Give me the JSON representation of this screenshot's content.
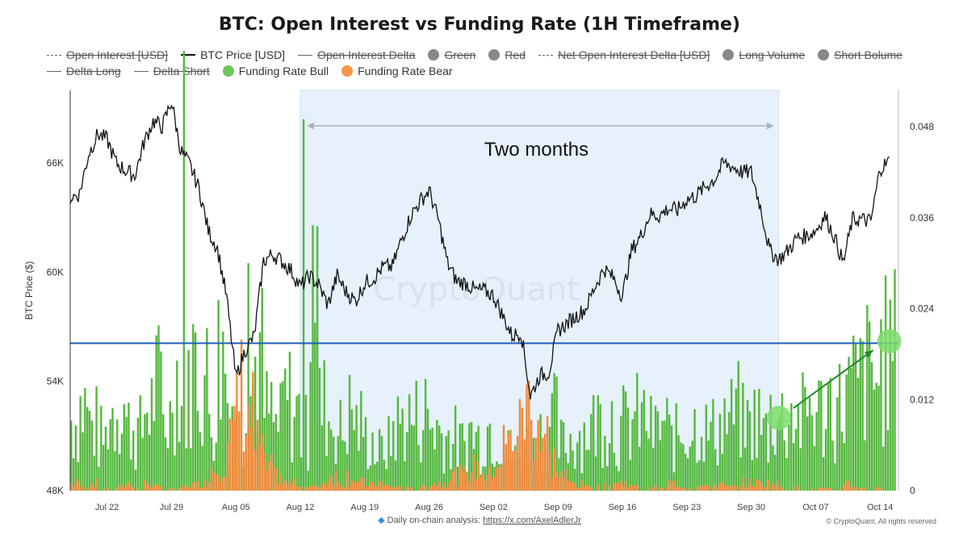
{
  "title": "BTC: Open Interest vs Funding Rate (1H Timeframe)",
  "legend": {
    "row1": [
      {
        "label": "Open Interest [USD]",
        "kind": "dashed",
        "off": true
      },
      {
        "label": "BTC Price [USD]",
        "kind": "black",
        "off": false
      },
      {
        "label": "Open Interest Delta",
        "kind": "line",
        "off": true
      },
      {
        "label": "Green",
        "kind": "dot",
        "color": "#888888",
        "off": true
      },
      {
        "label": "Red",
        "kind": "dot",
        "color": "#888888",
        "off": true
      },
      {
        "label": "Net Open Interest Delta [USD]",
        "kind": "dashed",
        "off": true
      },
      {
        "label": "Long Volume",
        "kind": "dot",
        "color": "#888888",
        "off": true
      },
      {
        "label": "Short Bolume",
        "kind": "dot",
        "color": "#888888",
        "off": true
      }
    ],
    "row2": [
      {
        "label": "Delta Long",
        "kind": "line",
        "off": true
      },
      {
        "label": "Delta Short",
        "kind": "line",
        "off": true
      },
      {
        "label": "Funding Rate Bull",
        "kind": "dot",
        "color": "#6cc65b",
        "off": false
      },
      {
        "label": "Funding Rate Bear",
        "kind": "dot",
        "color": "#f3964b",
        "off": false
      }
    ]
  },
  "annotation": "Two months",
  "watermark": "CryptoQuant",
  "footer": {
    "prefix": "Daily on-chain analysis: ",
    "link": "https://x.com/AxelAdlerJr",
    "copyright": "© CryptoQuant. All rights reserved"
  },
  "colors": {
    "price": "#111111",
    "bull": "#55b83f",
    "bear": "#f08a3c",
    "highlight_band": "#e6f1fc",
    "level_line": "#1f5fbf",
    "arrow": "#1e8a2a",
    "marker": "#7ddc6c"
  },
  "chart_data": {
    "type": "line",
    "ylabel": "BTC Price ($)",
    "ylim": [
      48000,
      70000
    ],
    "y2lim": [
      0,
      0.0528
    ],
    "y_ticks": [
      {
        "label": "48K",
        "value": 48000
      },
      {
        "label": "54K",
        "value": 54000
      },
      {
        "label": "60K",
        "value": 60000
      },
      {
        "label": "66K",
        "value": 66000
      }
    ],
    "y2_ticks": [
      {
        "label": "0",
        "value": 0
      },
      {
        "label": "0.012",
        "value": 0.012
      },
      {
        "label": "0.024",
        "value": 0.024
      },
      {
        "label": "0.036",
        "value": 0.036
      },
      {
        "label": "0.048",
        "value": 0.048
      }
    ],
    "x_ticks": [
      "Jul 22",
      "Jul 29",
      "Aug 05",
      "Aug 12",
      "Aug 19",
      "Aug 26",
      "Sep 02",
      "Sep 09",
      "Sep 16",
      "Sep 23",
      "Sep 30",
      "Oct 07",
      "Oct 14"
    ],
    "highlight_range": [
      "2024-08-12",
      "2024-10-03"
    ],
    "horizontal_line_value": 56100,
    "markers": [
      {
        "date": "2024-10-03",
        "funding_rate": 0.0096
      },
      {
        "date": "2024-10-15",
        "funding_rate": 0.0197
      }
    ],
    "series": [
      {
        "name": "BTC Price [USD]",
        "x": [
          "2024-07-18",
          "2024-07-19",
          "2024-07-20",
          "2024-07-21",
          "2024-07-22",
          "2024-07-23",
          "2024-07-24",
          "2024-07-25",
          "2024-07-26",
          "2024-07-27",
          "2024-07-28",
          "2024-07-29",
          "2024-07-30",
          "2024-07-31",
          "2024-08-01",
          "2024-08-02",
          "2024-08-03",
          "2024-08-04",
          "2024-08-05",
          "2024-08-06",
          "2024-08-07",
          "2024-08-08",
          "2024-08-09",
          "2024-08-10",
          "2024-08-11",
          "2024-08-12",
          "2024-08-13",
          "2024-08-14",
          "2024-08-15",
          "2024-08-16",
          "2024-08-17",
          "2024-08-18",
          "2024-08-19",
          "2024-08-20",
          "2024-08-21",
          "2024-08-22",
          "2024-08-23",
          "2024-08-24",
          "2024-08-25",
          "2024-08-26",
          "2024-08-27",
          "2024-08-28",
          "2024-08-29",
          "2024-08-30",
          "2024-08-31",
          "2024-09-01",
          "2024-09-02",
          "2024-09-03",
          "2024-09-04",
          "2024-09-05",
          "2024-09-06",
          "2024-09-07",
          "2024-09-08",
          "2024-09-09",
          "2024-09-10",
          "2024-09-11",
          "2024-09-12",
          "2024-09-13",
          "2024-09-14",
          "2024-09-15",
          "2024-09-16",
          "2024-09-17",
          "2024-09-18",
          "2024-09-19",
          "2024-09-20",
          "2024-09-21",
          "2024-09-22",
          "2024-09-23",
          "2024-09-24",
          "2024-09-25",
          "2024-09-26",
          "2024-09-27",
          "2024-09-28",
          "2024-09-29",
          "2024-09-30",
          "2024-10-01",
          "2024-10-02",
          "2024-10-03",
          "2024-10-04",
          "2024-10-05",
          "2024-10-06",
          "2024-10-07",
          "2024-10-08",
          "2024-10-09",
          "2024-10-10",
          "2024-10-11",
          "2024-10-12",
          "2024-10-13",
          "2024-10-14",
          "2024-10-15"
        ],
        "values": [
          64100,
          64300,
          66500,
          67600,
          67300,
          66000,
          65600,
          65300,
          67100,
          68300,
          68000,
          69400,
          66700,
          65900,
          64600,
          62300,
          61300,
          58600,
          54200,
          55700,
          56500,
          60600,
          61000,
          60600,
          60100,
          59200,
          59800,
          59300,
          58200,
          59800,
          58900,
          58400,
          59400,
          59700,
          60300,
          60300,
          61800,
          63100,
          63900,
          64500,
          62900,
          60500,
          59500,
          59400,
          59000,
          59000,
          58700,
          57600,
          56500,
          56700,
          53200,
          54300,
          54500,
          56800,
          57200,
          57600,
          58000,
          59200,
          60200,
          59700,
          58700,
          61200,
          62000,
          63200,
          63100,
          63500,
          63400,
          64000,
          64200,
          64700,
          65100,
          66000,
          65800,
          65500,
          65500,
          63600,
          61200,
          60700,
          61200,
          61900,
          62000,
          62300,
          63100,
          62000,
          60500,
          62900,
          62900,
          62800,
          65700,
          66100
        ]
      },
      {
        "name": "Funding Rate Bull",
        "x_range": [
          "2024-07-18",
          "2024-10-15"
        ],
        "values": [
          0.011,
          0.013,
          0.01,
          0.008,
          0.012,
          0.014,
          0.01,
          0.009,
          0.013,
          0.016,
          0.011,
          0.018,
          0.014,
          0.02,
          0.017,
          0.012,
          0.021,
          0.014,
          0.009,
          0.016,
          0.02,
          0.012,
          0.01,
          0.014,
          0.012,
          0.009,
          0.036,
          0.013,
          0.011,
          0.009,
          0.012,
          0.01,
          0.008,
          0.006,
          0.007,
          0.01,
          0.011,
          0.011,
          0.012,
          0.01,
          0.009,
          0.008,
          0.007,
          0.009,
          0.008,
          0.01,
          0.009,
          0.006,
          0.005,
          0.007,
          0.006,
          0.009,
          0.011,
          0.007,
          0.008,
          0.009,
          0.01,
          0.011,
          0.012,
          0.009,
          0.01,
          0.011,
          0.011,
          0.009,
          0.01,
          0.008,
          0.009,
          0.01,
          0.011,
          0.009,
          0.01,
          0.011,
          0.012,
          0.01,
          0.011,
          0.009,
          0.012,
          0.011,
          0.012,
          0.011,
          0.013,
          0.012,
          0.014,
          0.013,
          0.015,
          0.016,
          0.018,
          0.017,
          0.02,
          0.021
        ]
      },
      {
        "name": "Funding Rate Bear",
        "x_range": [
          "2024-07-18",
          "2024-10-15"
        ],
        "values": [
          0.001,
          0.0005,
          0.001,
          0.0003,
          0.0002,
          0.0005,
          0.001,
          0.0003,
          0.001,
          0.0005,
          0.0003,
          0.0002,
          0.0005,
          0.0008,
          0.001,
          0.003,
          0.004,
          0.007,
          0.013,
          0.01,
          0.006,
          0.003,
          0.002,
          0.001,
          0.001,
          0.0005,
          0.0005,
          0.001,
          0.002,
          0.001,
          0.002,
          0.001,
          0.0008,
          0.001,
          0.0006,
          0.0005,
          0.0003,
          0.0003,
          0.0005,
          0.001,
          0.001,
          0.002,
          0.002,
          0.003,
          0.003,
          0.002,
          0.004,
          0.006,
          0.008,
          0.011,
          0.01,
          0.007,
          0.004,
          0.002,
          0.001,
          0.0008,
          0.0005,
          0.0005,
          0.0006,
          0.001,
          0.001,
          0.0005,
          0.0003,
          0.0005,
          0.0003,
          0.001,
          0.0006,
          0.0004,
          0.0006,
          0.0005,
          0.0008,
          0.0005,
          0.0005,
          0.001,
          0.001,
          0.001,
          0.0008,
          0.0005,
          0.0003,
          0.0004,
          0.0002,
          0.0003,
          0.0002,
          0.0003,
          0.001,
          0.0005,
          0.0003,
          0.0004,
          0.0002,
          0.0002
        ]
      }
    ]
  }
}
